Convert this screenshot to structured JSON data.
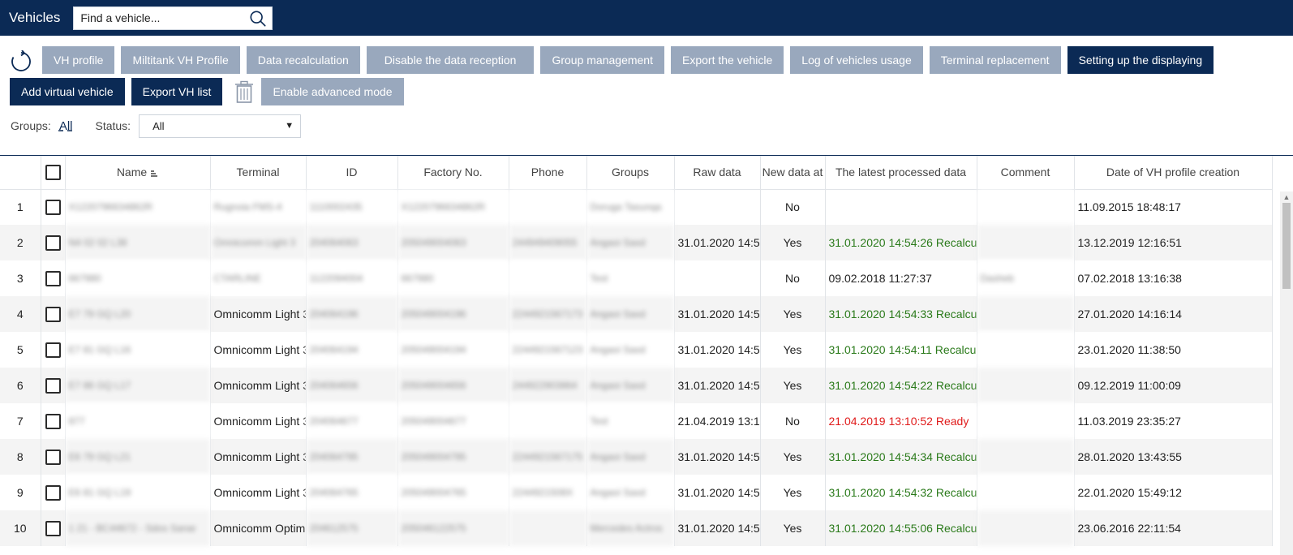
{
  "header": {
    "title": "Vehicles",
    "search_placeholder": "Find a vehicle..."
  },
  "toolbar": {
    "row1": [
      "VH profile",
      "Miltitank VH Profile",
      "Data recalculation",
      "Disable the data reception",
      "Group management",
      "Export the vehicle",
      "Log of vehicles usage",
      "Terminal replacement",
      "Setting up the displaying"
    ],
    "add_virtual": "Add virtual vehicle",
    "export_list": "Export VH list",
    "advanced": "Enable advanced mode"
  },
  "filters": {
    "groups_label": "Groups:",
    "groups_value": "All",
    "status_label": "Status:",
    "status_value": "All"
  },
  "table": {
    "columns": [
      "Name",
      "Terminal",
      "ID",
      "Factory No.",
      "Phone",
      "Groups",
      "Raw data",
      "New data at",
      "The latest processed data",
      "Comment",
      "Date of VH profile creation"
    ],
    "rows": [
      {
        "n": "1",
        "name": "X1220796634862R",
        "terminal": "Rugnoia FMS-4",
        "id": "1110002435",
        "factory": "X1220796634862R",
        "phone": "",
        "groups": "Doruga Tasunqa",
        "raw": "",
        "newdata": "No",
        "latest": "",
        "latest_color": "",
        "comment": "",
        "created": "11.09.2015 18:48:17"
      },
      {
        "n": "2",
        "name": "N4 02 02 L38",
        "terminal": "Omnicomm Light 3",
        "id": "204064063",
        "factory": "205049004063",
        "phone": "244949409055",
        "groups": "Angaoi Saxd",
        "raw": "31.01.2020 14:5",
        "newdata": "Yes",
        "latest": "31.01.2020 14:54:26 Recalcu",
        "latest_color": "green",
        "comment": "",
        "created": "13.12.2019 12:16:51"
      },
      {
        "n": "3",
        "name": "667980",
        "terminal": "CTARLINE",
        "id": "1122094004",
        "factory": "667980",
        "phone": "",
        "groups": "Test",
        "raw": "",
        "newdata": "No",
        "latest": "09.02.2018 11:27:37",
        "latest_color": "",
        "comment": "Dasheb",
        "created": "07.02.2018 13:16:38"
      },
      {
        "n": "4",
        "name": "E7 79 GQ L20",
        "terminal": "Omnicomm Light 3",
        "id": "204064196",
        "factory": "205049004196",
        "phone": "2244921567173",
        "groups": "Angaoi Saxd",
        "raw": "31.01.2020 14:5",
        "newdata": "Yes",
        "latest": "31.01.2020 14:54:33 Recalcu",
        "latest_color": "green",
        "comment": "",
        "created": "27.01.2020 14:16:14"
      },
      {
        "n": "5",
        "name": "E7 81 GQ L16",
        "terminal": "Omnicomm Light 3",
        "id": "204064194",
        "factory": "205049004194",
        "phone": "2244921567123",
        "groups": "Angaoi Saxd",
        "raw": "31.01.2020 14:5",
        "newdata": "Yes",
        "latest": "31.01.2020 14:54:11 Recalcu",
        "latest_color": "green",
        "comment": "",
        "created": "23.01.2020 11:38:50"
      },
      {
        "n": "6",
        "name": "E7 86 GQ L17",
        "terminal": "Omnicomm Light 3",
        "id": "204064656",
        "factory": "205049004656",
        "phone": "244922903864",
        "groups": "Angaoi Saxd",
        "raw": "31.01.2020 14:5",
        "newdata": "Yes",
        "latest": "31.01.2020 14:54:22 Recalcu",
        "latest_color": "green",
        "comment": "",
        "created": "09.12.2019 11:00:09"
      },
      {
        "n": "7",
        "name": "877",
        "terminal": "Omnicomm Light 3",
        "id": "204064677",
        "factory": "205049004677",
        "phone": "",
        "groups": "Test",
        "raw": "21.04.2019 13:1",
        "newdata": "No",
        "latest": "21.04.2019 13:10:52 Ready",
        "latest_color": "red",
        "comment": "",
        "created": "11.03.2019 23:35:27"
      },
      {
        "n": "8",
        "name": "E6 79 GQ L21",
        "terminal": "Omnicomm Light 3",
        "id": "204064795",
        "factory": "205049004795",
        "phone": "2244921567175",
        "groups": "Angaoi Saxd",
        "raw": "31.01.2020 14:5",
        "newdata": "Yes",
        "latest": "31.01.2020 14:54:34 Recalcu",
        "latest_color": "green",
        "comment": "",
        "created": "28.01.2020 13:43:55"
      },
      {
        "n": "9",
        "name": "E6 81 GQ L19",
        "terminal": "Omnicomm Light 3",
        "id": "204064765",
        "factory": "205049004765",
        "phone": "2244921508X",
        "groups": "Angaoi Saxd",
        "raw": "31.01.2020 14:5",
        "newdata": "Yes",
        "latest": "31.01.2020 14:54:32 Recalcu",
        "latest_color": "green",
        "comment": "",
        "created": "22.01.2020 15:49:12"
      },
      {
        "n": "10",
        "name": "1 21 - BC44672 - Sdos Sanar",
        "terminal": "Omnicomm Optim",
        "id": "204612575",
        "factory": "205046122575",
        "phone": "",
        "groups": "Mercedes Actros",
        "raw": "31.01.2020 14:5",
        "newdata": "Yes",
        "latest": "31.01.2020 14:55:06 Recalcu",
        "latest_color": "green",
        "comment": "",
        "created": "23.06.2016 22:11:54"
      }
    ]
  },
  "colors": {
    "brand": "#0b2a55",
    "disabled_button": "#99a8bd",
    "green_text": "#2a7a1a",
    "red_text": "#e01b1b"
  }
}
